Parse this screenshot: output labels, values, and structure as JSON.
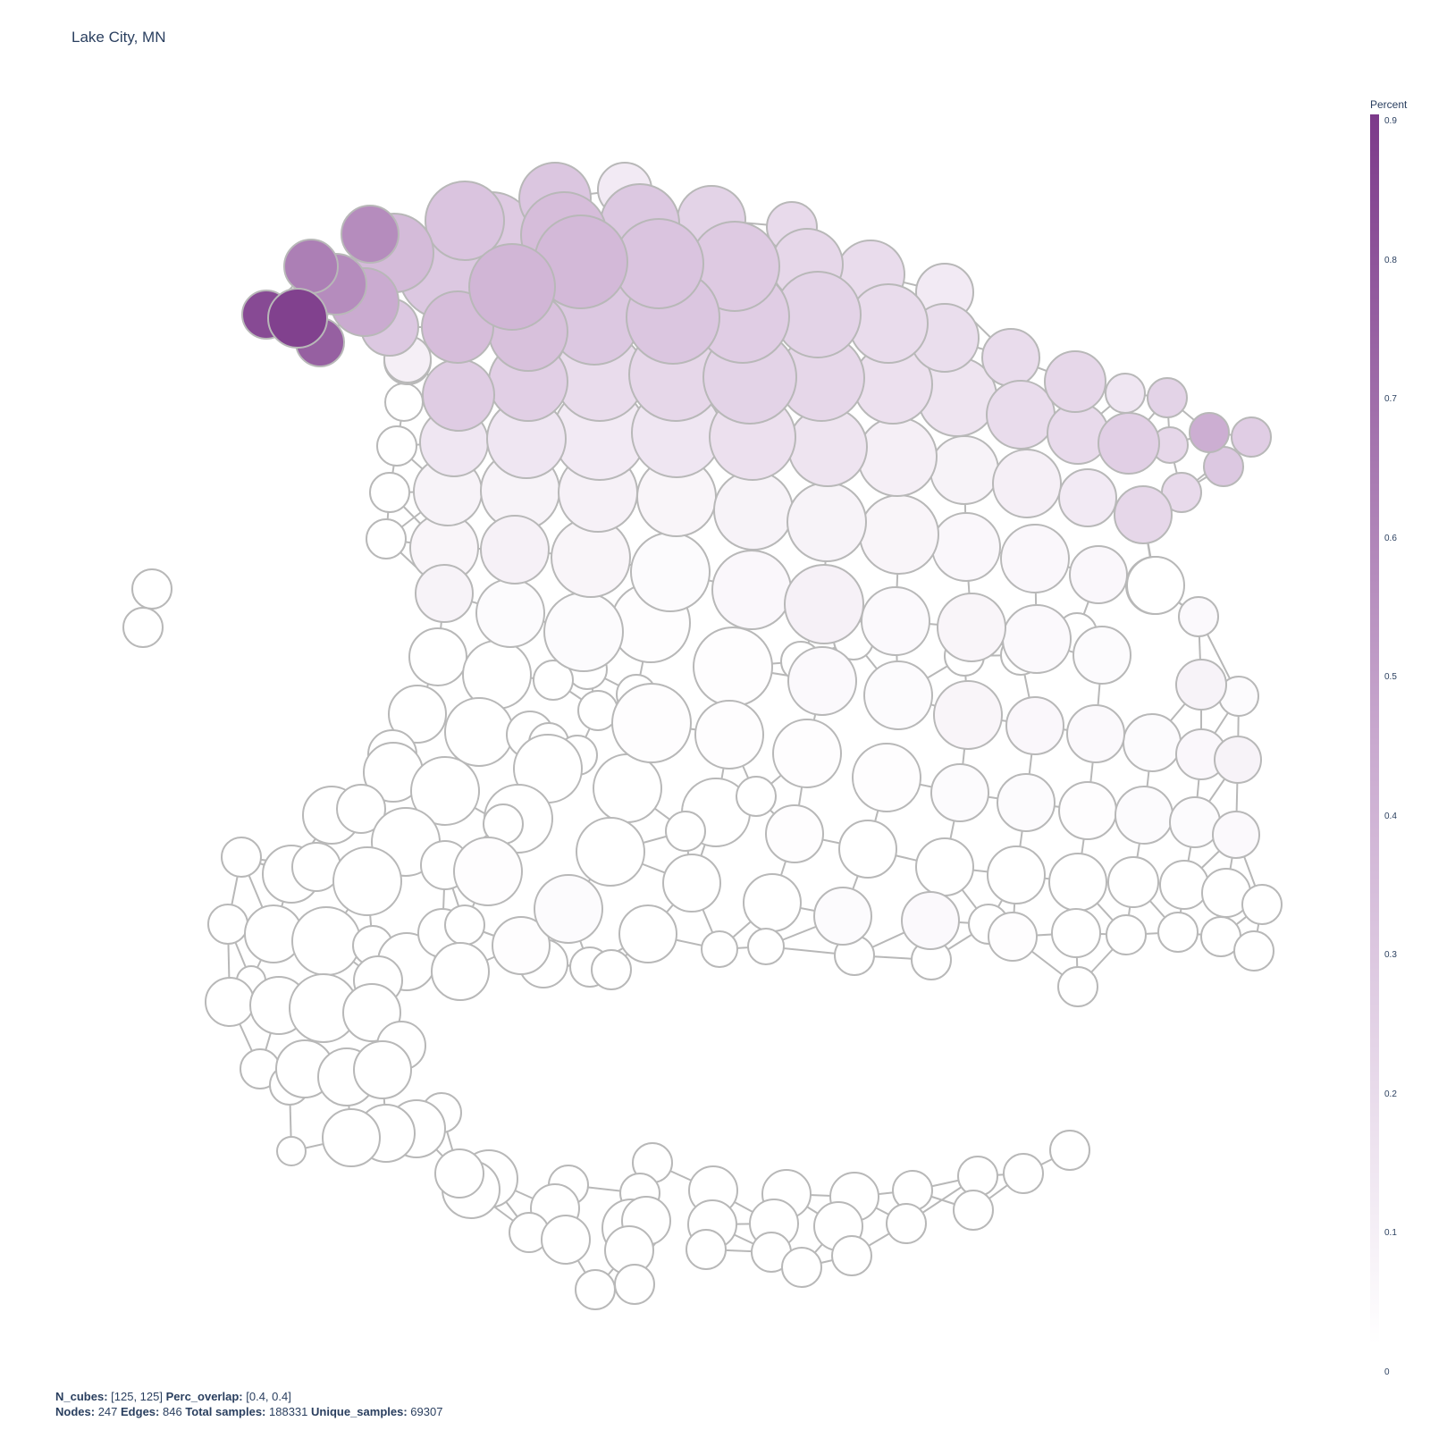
{
  "title": "Lake City, MN",
  "colorbar": {
    "title": "Percent",
    "ticks": [
      "0",
      "0.1",
      "0.2",
      "0.3",
      "0.4",
      "0.5",
      "0.6",
      "0.7",
      "0.8",
      "0.9"
    ],
    "colors": [
      "#ffffff",
      "#e9dcec",
      "#c9a9cf",
      "#7c3a8a"
    ]
  },
  "footer": {
    "n_cubes_label": "N_cubes:",
    "n_cubes_value": "[125, 125]",
    "perc_overlap_label": "Perc_overlap:",
    "perc_overlap_value": "[0.4, 0.4]",
    "nodes_label": "Nodes:",
    "nodes_value": "247",
    "edges_label": "Edges:",
    "edges_value": "846",
    "total_samples_label": "Total samples:",
    "total_samples_value": "188331",
    "unique_samples_label": "Unique_samples:",
    "unique_samples_value": "69307"
  },
  "node_style": {
    "stroke": "#b8b8b8",
    "edge_color": "#b8b8b8"
  }
}
